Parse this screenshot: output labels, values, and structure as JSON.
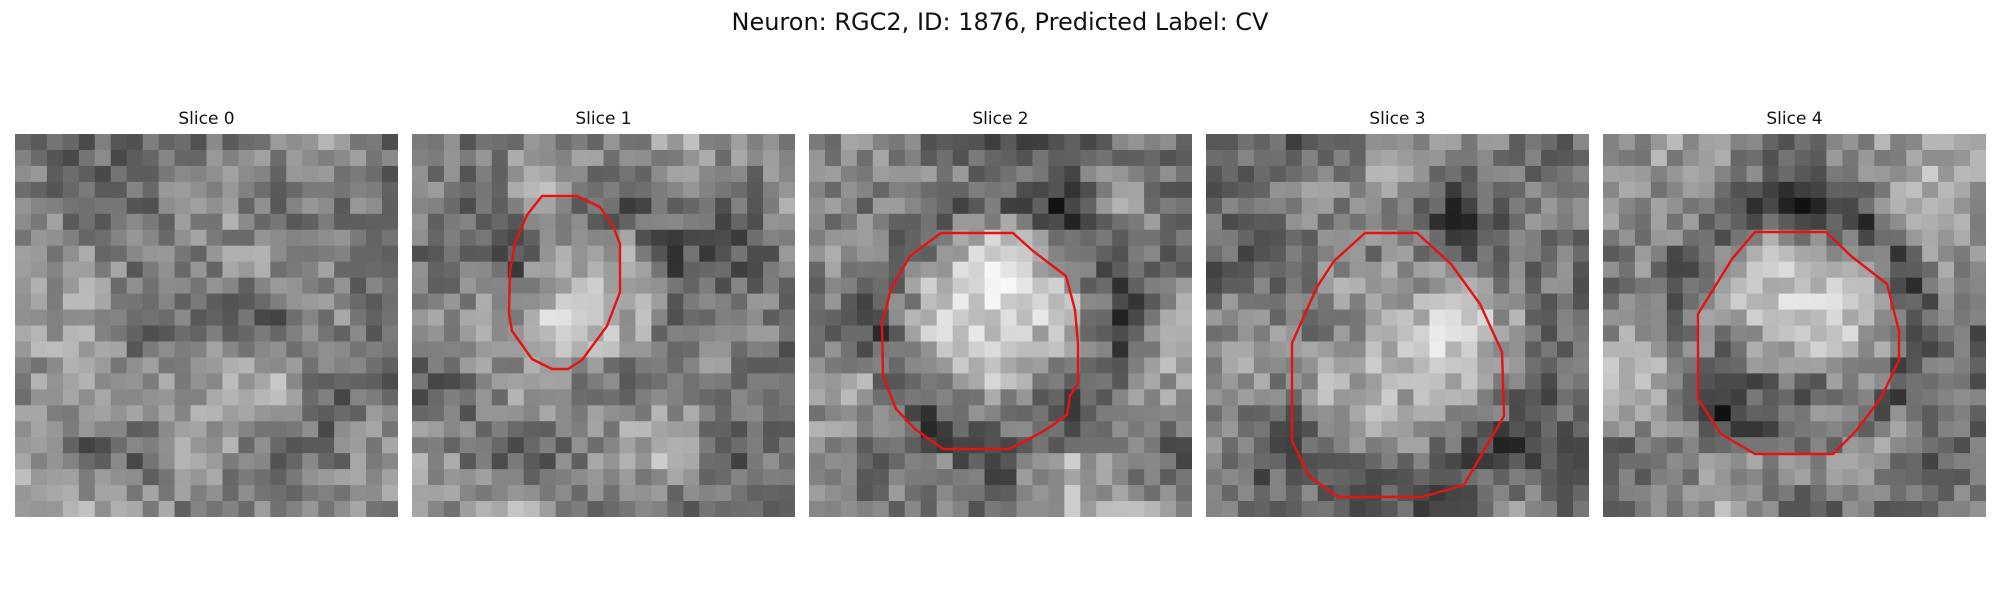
{
  "figure": {
    "title": "Neuron: RGC2, ID: 1876, Predicted Label: CV",
    "contour_color": "#e51313",
    "colormap": "grayscale"
  },
  "slices": [
    {
      "title": "Slice 0",
      "has_contour": false
    },
    {
      "title": "Slice 1",
      "has_contour": true
    },
    {
      "title": "Slice 2",
      "has_contour": true
    },
    {
      "title": "Slice 3",
      "has_contour": true
    },
    {
      "title": "Slice 4",
      "has_contour": true
    }
  ]
}
